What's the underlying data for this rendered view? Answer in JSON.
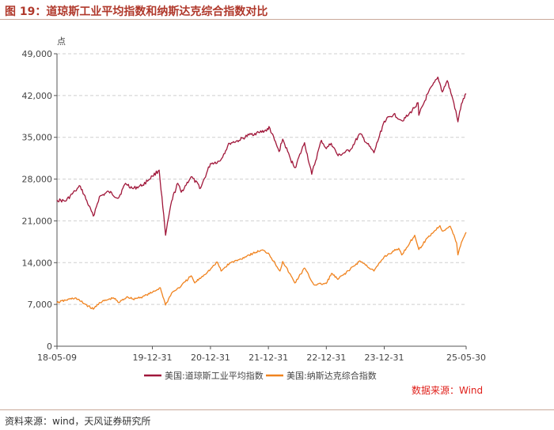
{
  "figure": {
    "title": "图 19：道琼斯工业平均指数和纳斯达克综合指数对比",
    "footer": "资料来源：wind，天风证券研究所",
    "source_note": "数据来源：Wind"
  },
  "colors": {
    "dow": "#a0173a",
    "nasdaq": "#f0831f",
    "title": "#b0382b",
    "source": "#e0201b"
  },
  "chart_data": {
    "type": "line",
    "title": "",
    "ylabel": "点",
    "xlabel": "",
    "ylim": [
      0,
      49000
    ],
    "yticks": [
      0,
      7000,
      14000,
      21000,
      28000,
      35000,
      42000,
      49000
    ],
    "ytick_labels": [
      "0",
      "7,000",
      "14,000",
      "21,000",
      "28,000",
      "35,000",
      "42,000",
      "49,000"
    ],
    "xlim": [
      "2018-05-09",
      "2025-05-30"
    ],
    "xticks": [
      "2018-05-09",
      "2019-12-31",
      "2020-12-31",
      "2021-12-31",
      "2022-12-31",
      "2023-12-31",
      "2025-05-30"
    ],
    "xtick_labels": [
      "18-05-09",
      "19-12-31",
      "20-12-31",
      "21-12-31",
      "22-12-31",
      "23-12-31",
      "25-05-30"
    ],
    "grid": true,
    "legend": "bottom",
    "series": [
      {
        "name": "美国:道琼斯工业平均指数",
        "color": "#a0173a",
        "x": [
          "2018-05-09",
          "2018-07-01",
          "2018-09-01",
          "2018-10-03",
          "2018-12-24",
          "2019-01-31",
          "2019-03-31",
          "2019-05-31",
          "2019-07-15",
          "2019-08-31",
          "2019-10-31",
          "2019-12-31",
          "2020-02-12",
          "2020-03-23",
          "2020-04-30",
          "2020-06-08",
          "2020-06-30",
          "2020-08-31",
          "2020-10-30",
          "2020-12-31",
          "2021-02-28",
          "2021-04-30",
          "2021-06-30",
          "2021-08-31",
          "2021-10-31",
          "2021-12-31",
          "2022-01-04",
          "2022-03-08",
          "2022-03-31",
          "2022-05-20",
          "2022-06-17",
          "2022-08-16",
          "2022-09-30",
          "2022-11-30",
          "2022-12-31",
          "2023-01-31",
          "2023-03-15",
          "2023-05-31",
          "2023-07-31",
          "2023-10-27",
          "2023-12-31",
          "2024-02-29",
          "2024-04-19",
          "2024-05-31",
          "2024-07-31",
          "2024-08-05",
          "2024-09-30",
          "2024-11-30",
          "2024-12-04",
          "2024-12-31",
          "2025-01-31",
          "2025-03-13",
          "2025-04-08",
          "2025-04-30",
          "2025-05-30"
        ],
        "values": [
          24500,
          24300,
          26000,
          26800,
          21800,
          25000,
          25900,
          24800,
          27300,
          26400,
          27000,
          28500,
          29500,
          18600,
          24300,
          27300,
          25800,
          28400,
          26500,
          30600,
          31000,
          34000,
          34500,
          35400,
          35800,
          36300,
          36800,
          32600,
          34700,
          31300,
          29900,
          34100,
          28800,
          34500,
          33100,
          34000,
          31900,
          32900,
          35600,
          32400,
          37700,
          38900,
          37800,
          38700,
          40800,
          38700,
          42300,
          44900,
          45000,
          42600,
          44500,
          40800,
          37600,
          40600,
          42300
        ]
      },
      {
        "name": "美国:纳斯达克综合指数",
        "color": "#f0831f",
        "x": [
          "2018-05-09",
          "2018-07-01",
          "2018-08-31",
          "2018-12-24",
          "2019-01-31",
          "2019-04-30",
          "2019-06-03",
          "2019-07-26",
          "2019-08-31",
          "2019-10-31",
          "2019-12-31",
          "2020-02-19",
          "2020-03-23",
          "2020-04-30",
          "2020-06-30",
          "2020-08-31",
          "2020-09-23",
          "2020-12-31",
          "2021-02-12",
          "2021-03-08",
          "2021-04-30",
          "2021-06-30",
          "2021-08-31",
          "2021-11-19",
          "2021-12-31",
          "2022-03-14",
          "2022-03-31",
          "2022-06-16",
          "2022-08-16",
          "2022-10-13",
          "2022-12-31",
          "2023-02-02",
          "2023-03-13",
          "2023-05-31",
          "2023-07-31",
          "2023-10-27",
          "2023-12-31",
          "2024-03-31",
          "2024-04-19",
          "2024-07-10",
          "2024-08-05",
          "2024-09-30",
          "2024-12-16",
          "2024-12-31",
          "2025-02-19",
          "2025-03-31",
          "2025-04-08",
          "2025-04-30",
          "2025-05-30"
        ],
        "values": [
          7300,
          7700,
          8100,
          6200,
          7300,
          8100,
          7300,
          8300,
          7900,
          8300,
          9000,
          9800,
          6900,
          8900,
          10100,
          11800,
          10600,
          12900,
          14100,
          12600,
          13900,
          14500,
          15300,
          16100,
          15600,
          12600,
          14200,
          10600,
          13100,
          10300,
          10500,
          12200,
          11200,
          12900,
          14300,
          12600,
          15000,
          16400,
          15300,
          18600,
          16200,
          18200,
          20200,
          19300,
          20100,
          17300,
          15300,
          17400,
          19100
        ]
      }
    ]
  }
}
